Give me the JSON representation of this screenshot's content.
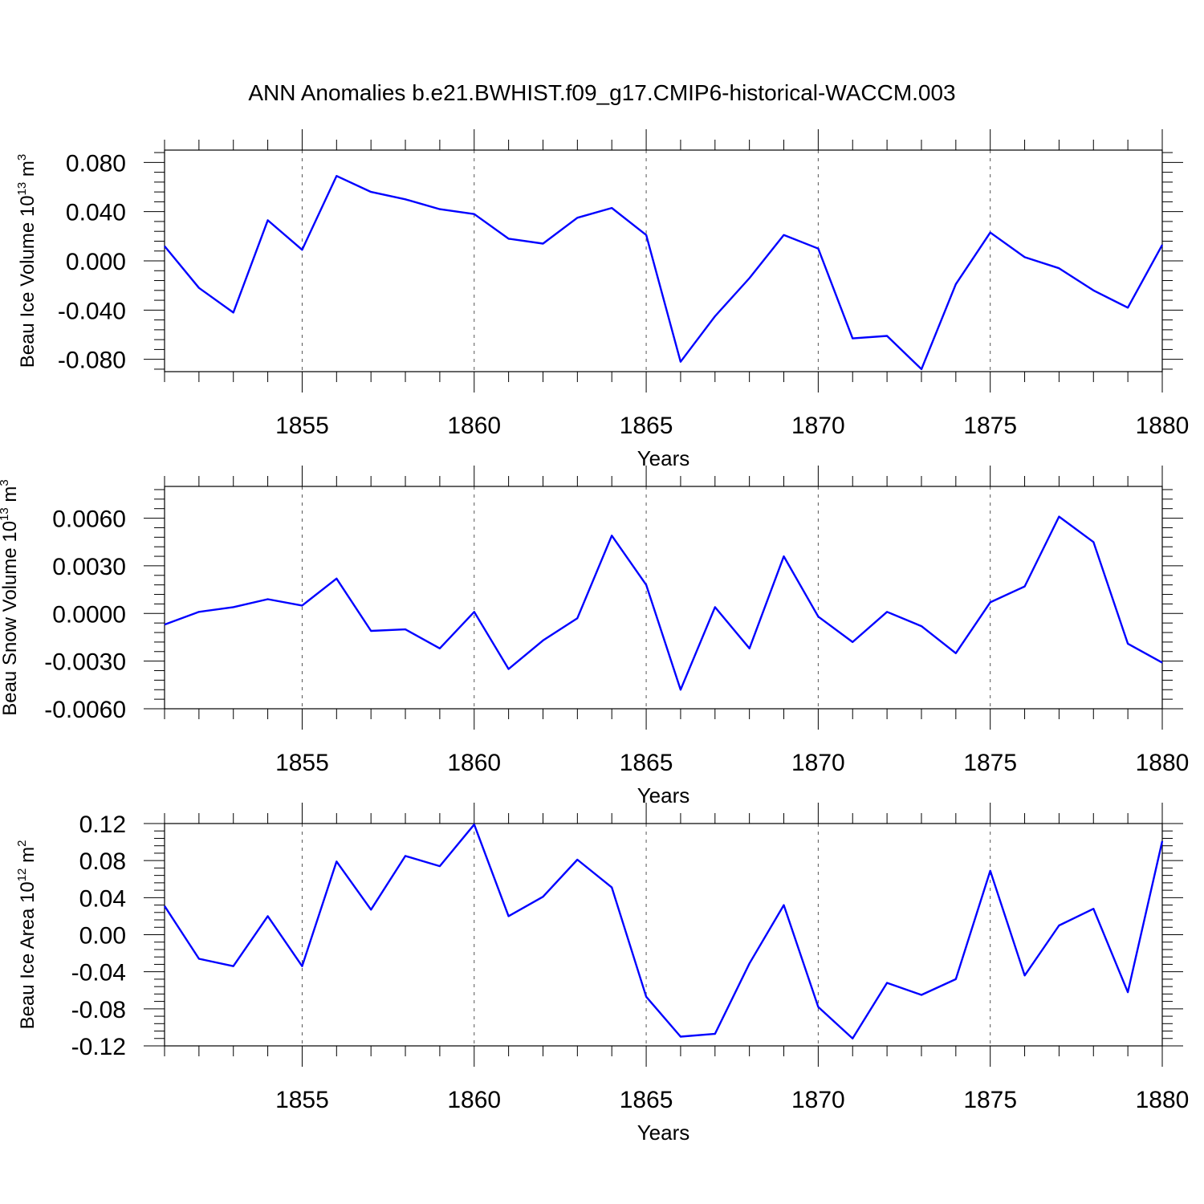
{
  "title": "ANN Anomalies b.e21.BWHIST.f09_g17.CMIP6-historical-WACCM.003",
  "colors": {
    "series": "#0000ff",
    "axes": "#000000",
    "grid": "#555555"
  },
  "chart_data": [
    {
      "type": "line",
      "ylabel": {
        "text": "Beau Ice Volume 10",
        "exp": "13",
        "unit": " m",
        "unit_exp": "3"
      },
      "xlabel": "Years",
      "xlim": [
        1851,
        1880
      ],
      "ylim": [
        -0.09,
        0.09
      ],
      "xticks": [
        1855,
        1860,
        1865,
        1870,
        1875,
        1880
      ],
      "yticks": [
        -0.08,
        -0.04,
        0.0,
        0.04,
        0.08
      ],
      "ytick_labels": [
        "-0.080",
        "-0.040",
        "0.000",
        "0.040",
        "0.080"
      ],
      "grid": "vertical dashed at major x ticks",
      "x": [
        1851,
        1852,
        1853,
        1854,
        1855,
        1856,
        1857,
        1858,
        1859,
        1860,
        1861,
        1862,
        1863,
        1864,
        1865,
        1866,
        1867,
        1868,
        1869,
        1870,
        1871,
        1872,
        1873,
        1874,
        1875,
        1876,
        1877,
        1878,
        1879,
        1880
      ],
      "y": [
        0.012,
        -0.022,
        -0.042,
        0.033,
        0.009,
        0.069,
        0.056,
        0.05,
        0.042,
        0.038,
        0.018,
        0.014,
        0.035,
        0.043,
        0.021,
        -0.082,
        -0.045,
        -0.014,
        0.021,
        0.01,
        -0.063,
        -0.061,
        -0.088,
        -0.019,
        0.023,
        0.003,
        -0.006,
        -0.024,
        -0.038,
        0.013
      ]
    },
    {
      "type": "line",
      "ylabel": {
        "text": "Beau Snow Volume 10",
        "exp": "13",
        "unit": " m",
        "unit_exp": "3"
      },
      "xlabel": "Years",
      "xlim": [
        1851,
        1880
      ],
      "ylim": [
        -0.006,
        0.008
      ],
      "xticks": [
        1855,
        1860,
        1865,
        1870,
        1875,
        1880
      ],
      "yticks": [
        -0.006,
        -0.003,
        0.0,
        0.003,
        0.006
      ],
      "ytick_labels": [
        "-0.0060",
        "-0.0030",
        "0.0000",
        "0.0030",
        "0.0060"
      ],
      "grid": "vertical dashed at major x ticks",
      "x": [
        1851,
        1852,
        1853,
        1854,
        1855,
        1856,
        1857,
        1858,
        1859,
        1860,
        1861,
        1862,
        1863,
        1864,
        1865,
        1866,
        1867,
        1868,
        1869,
        1870,
        1871,
        1872,
        1873,
        1874,
        1875,
        1876,
        1877,
        1878,
        1879,
        1880
      ],
      "y": [
        -0.0007,
        0.0001,
        0.0004,
        0.0009,
        0.0005,
        0.0022,
        -0.0011,
        -0.001,
        -0.0022,
        0.0001,
        -0.0035,
        -0.0017,
        -0.0003,
        0.0049,
        0.0018,
        -0.0048,
        0.0004,
        -0.0022,
        0.0036,
        -0.0002,
        -0.0018,
        0.0001,
        -0.0008,
        -0.0025,
        0.0007,
        0.0017,
        0.0061,
        0.0045,
        -0.0019,
        -0.0031
      ]
    },
    {
      "type": "line",
      "ylabel": {
        "text": "Beau Ice Area 10",
        "exp": "12",
        "unit": " m",
        "unit_exp": "2"
      },
      "xlabel": "Years",
      "xlim": [
        1851,
        1880
      ],
      "ylim": [
        -0.12,
        0.12
      ],
      "xticks": [
        1855,
        1860,
        1865,
        1870,
        1875,
        1880
      ],
      "yticks": [
        -0.12,
        -0.08,
        -0.04,
        0.0,
        0.04,
        0.08,
        0.12
      ],
      "ytick_labels": [
        "-0.12",
        "-0.08",
        "-0.04",
        "0.00",
        "0.04",
        "0.08",
        "0.12"
      ],
      "grid": "vertical dashed at major x ticks",
      "x": [
        1851,
        1852,
        1853,
        1854,
        1855,
        1856,
        1857,
        1858,
        1859,
        1860,
        1861,
        1862,
        1863,
        1864,
        1865,
        1866,
        1867,
        1868,
        1869,
        1870,
        1871,
        1872,
        1873,
        1874,
        1875,
        1876,
        1877,
        1878,
        1879,
        1880
      ],
      "y": [
        0.031,
        -0.026,
        -0.034,
        0.02,
        -0.034,
        0.079,
        0.027,
        0.085,
        0.074,
        0.119,
        0.02,
        0.041,
        0.081,
        0.051,
        -0.067,
        -0.11,
        -0.107,
        -0.031,
        0.032,
        -0.078,
        -0.112,
        -0.052,
        -0.065,
        -0.048,
        0.069,
        -0.044,
        0.01,
        0.028,
        -0.062,
        0.101
      ]
    }
  ]
}
